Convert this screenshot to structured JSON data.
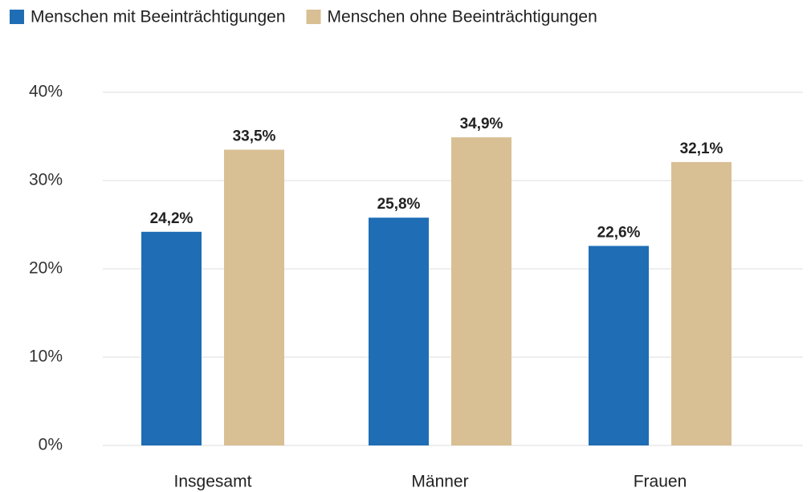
{
  "chart_data": {
    "type": "bar",
    "categories": [
      "Insgesamt",
      "Männer",
      "Frauen"
    ],
    "series": [
      {
        "name": "Menschen mit Beeinträchtigungen",
        "color": "#1f6db5",
        "values": [
          24.2,
          25.8,
          22.6
        ],
        "value_labels": [
          "24,2%",
          "25,8%",
          "22,6%"
        ]
      },
      {
        "name": "Menschen ohne Beeinträchtigungen",
        "color": "#d9bf94",
        "values": [
          33.5,
          34.9,
          32.1
        ],
        "value_labels": [
          "33,5%",
          "34,9%",
          "32,1%"
        ]
      }
    ],
    "ylim": [
      0,
      40
    ],
    "yticks": [
      {
        "value": 0,
        "label": "0%"
      },
      {
        "value": 10,
        "label": "10%"
      },
      {
        "value": 20,
        "label": "20%"
      },
      {
        "value": 30,
        "label": "30%"
      },
      {
        "value": 40,
        "label": "40%"
      }
    ],
    "grid": true,
    "legend": "top"
  }
}
